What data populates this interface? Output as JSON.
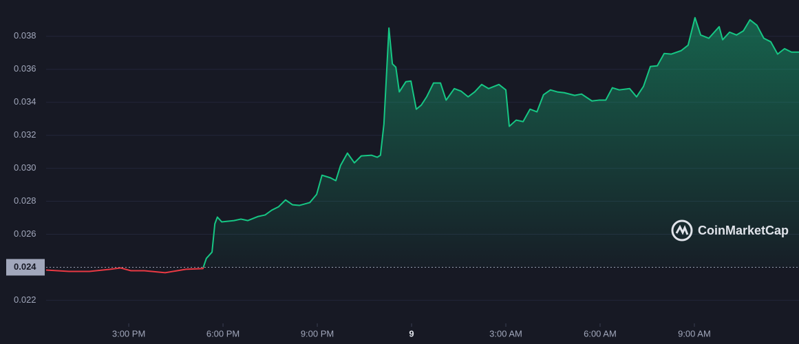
{
  "chart_data": {
    "type": "line",
    "watermark": "CoinMarketCap",
    "x": [
      12.37,
      13.1,
      13.75,
      14.41,
      14.74,
      15.07,
      15.5,
      16.16,
      16.82,
      17.36,
      17.47,
      17.65,
      17.74,
      17.82,
      17.96,
      18.35,
      18.57,
      18.79,
      19.12,
      19.34,
      19.55,
      19.77,
      19.99,
      20.21,
      20.43,
      20.76,
      20.98,
      21.15,
      21.42,
      21.59,
      21.74,
      21.96,
      22.18,
      22.4,
      22.73,
      22.91,
      23.01,
      23.12,
      23.28,
      23.39,
      23.5,
      23.61,
      23.82,
      23.98,
      24.15,
      24.31,
      24.48,
      24.7,
      24.92,
      25.1,
      25.36,
      25.58,
      25.8,
      26.01,
      26.23,
      26.45,
      26.78,
      27.0,
      27.11,
      27.33,
      27.55,
      27.77,
      27.99,
      28.2,
      28.42,
      28.64,
      28.86,
      29.19,
      29.41,
      29.74,
      29.96,
      30.18,
      30.39,
      30.61,
      30.94,
      31.16,
      31.38,
      31.6,
      31.82,
      32.04,
      32.26,
      32.58,
      32.8,
      33.02,
      33.2,
      33.46,
      33.79,
      33.9,
      34.12,
      34.34,
      34.56,
      34.77,
      34.99,
      35.21,
      35.43,
      35.65,
      35.87,
      36.09,
      36.33
    ],
    "values": [
      0.02383,
      0.02375,
      0.02375,
      0.02388,
      0.02396,
      0.02379,
      0.02379,
      0.02367,
      0.02388,
      0.02392,
      0.02454,
      0.02492,
      0.02663,
      0.02704,
      0.02675,
      0.02683,
      0.02692,
      0.02683,
      0.02708,
      0.02717,
      0.02746,
      0.02767,
      0.02808,
      0.02779,
      0.02775,
      0.02792,
      0.02842,
      0.02958,
      0.02942,
      0.02925,
      0.03017,
      0.03092,
      0.03033,
      0.03075,
      0.03079,
      0.03067,
      0.03079,
      0.03267,
      0.0385,
      0.03633,
      0.03613,
      0.03463,
      0.03525,
      0.03529,
      0.03358,
      0.03383,
      0.03433,
      0.03517,
      0.03517,
      0.03413,
      0.03483,
      0.03467,
      0.03433,
      0.03463,
      0.03508,
      0.03483,
      0.03508,
      0.03475,
      0.03254,
      0.03292,
      0.03283,
      0.03358,
      0.03342,
      0.03446,
      0.03475,
      0.03463,
      0.03458,
      0.03442,
      0.0345,
      0.03408,
      0.03413,
      0.03413,
      0.03488,
      0.03475,
      0.03483,
      0.03433,
      0.03496,
      0.03617,
      0.03621,
      0.03696,
      0.03692,
      0.03713,
      0.03746,
      0.03913,
      0.03808,
      0.03788,
      0.03858,
      0.03779,
      0.03825,
      0.03808,
      0.03833,
      0.039,
      0.03867,
      0.03788,
      0.03767,
      0.03692,
      0.03725,
      0.03704,
      0.03704
    ],
    "baseline": 0.024,
    "color_up": "#16c784",
    "color_down": "#ea3943",
    "xlim": [
      12.37,
      36.33
    ],
    "xticks": [
      {
        "value": 15,
        "label": "3:00 PM"
      },
      {
        "value": 18,
        "label": "6:00 PM"
      },
      {
        "value": 21,
        "label": "9:00 PM"
      },
      {
        "value": 24,
        "label": "9"
      },
      {
        "value": 27,
        "label": "3:00 AM"
      },
      {
        "value": 30,
        "label": "6:00 AM"
      },
      {
        "value": 33,
        "label": "9:00 AM"
      }
    ],
    "ylim": [
      0.0206,
      0.0402
    ],
    "yticks": [
      0.022,
      0.024,
      0.026,
      0.028,
      {
        "value": 0.03,
        "label": "0.030"
      },
      0.032,
      0.034,
      0.036,
      0.038
    ],
    "grid": true
  }
}
